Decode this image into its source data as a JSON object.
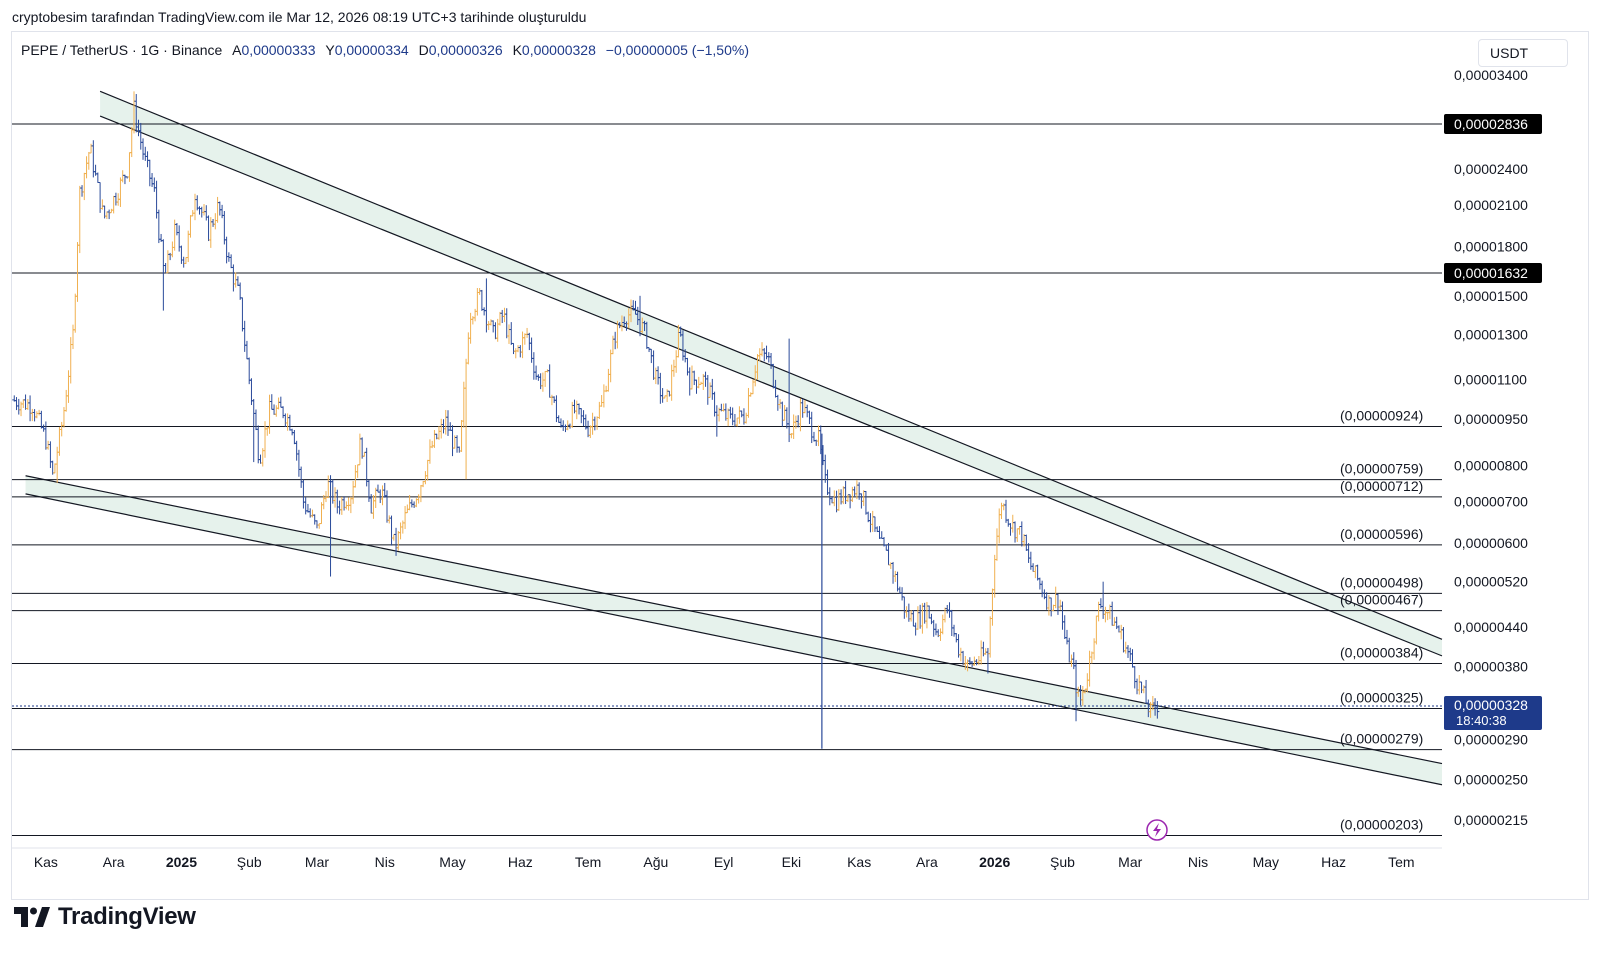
{
  "caption": "cryptobesim tarafından TradingView.com ile Mar 12, 2026 08:19 UTC+3 tarihinde oluşturuldu",
  "legend": {
    "symbol": "PEPE / TetherUS · 1G · Binance",
    "open_label": "A",
    "open": "0,00000333",
    "high_label": "Y",
    "high": "0,00000334",
    "low_label": "D",
    "low": "0,00000326",
    "close_label": "K",
    "close": "0,00000328",
    "change": "−0,00000005 (−1,50%)"
  },
  "currency_button": "USDT",
  "logo": {
    "text": "TradingView"
  },
  "colors": {
    "up": "#f0b050",
    "down": "#2a4a9a",
    "channel_fill": "#e6f2ec",
    "level_line": "#131722",
    "price_label_bg": "#1e3a8a"
  },
  "chart_data": {
    "type": "candlestick",
    "title": "PEPE / TetherUS · 1G · Binance",
    "y_scale": "log",
    "y_ticks": [
      "0,00003400",
      "0,00002400",
      "0,00002100",
      "0,00001800",
      "0,00001500",
      "0,00001300",
      "0,00001100",
      "0,00000950",
      "0,00000800",
      "0,00000700",
      "0,00000600",
      "0,00000520",
      "0,00000440",
      "0,00000380",
      "0,00000290",
      "0,00000250",
      "0,00000215"
    ],
    "y_tick_values": [
      3.4e-05,
      2.4e-05,
      2.1e-05,
      1.8e-05,
      1.5e-05,
      1.3e-05,
      1.1e-05,
      9.5e-06,
      8e-06,
      7e-06,
      6e-06,
      5.2e-06,
      4.4e-06,
      3.8e-06,
      2.9e-06,
      2.5e-06,
      2.15e-06
    ],
    "x_ticks": [
      {
        "label": "Kas",
        "t": 0.5,
        "bold": false
      },
      {
        "label": "Ara",
        "t": 1.5,
        "bold": false
      },
      {
        "label": "2025",
        "t": 2.5,
        "bold": true
      },
      {
        "label": "Şub",
        "t": 3.5,
        "bold": false
      },
      {
        "label": "Mar",
        "t": 4.5,
        "bold": false
      },
      {
        "label": "Nis",
        "t": 5.5,
        "bold": false
      },
      {
        "label": "May",
        "t": 6.5,
        "bold": false
      },
      {
        "label": "Haz",
        "t": 7.5,
        "bold": false
      },
      {
        "label": "Tem",
        "t": 8.5,
        "bold": false
      },
      {
        "label": "Ağu",
        "t": 9.5,
        "bold": false
      },
      {
        "label": "Eyl",
        "t": 10.5,
        "bold": false
      },
      {
        "label": "Eki",
        "t": 11.5,
        "bold": false
      },
      {
        "label": "Kas",
        "t": 12.5,
        "bold": false
      },
      {
        "label": "Ara",
        "t": 13.5,
        "bold": false
      },
      {
        "label": "2026",
        "t": 14.5,
        "bold": true
      },
      {
        "label": "Şub",
        "t": 15.5,
        "bold": false
      },
      {
        "label": "Mar",
        "t": 16.5,
        "bold": false
      },
      {
        "label": "Nis",
        "t": 17.5,
        "bold": false
      },
      {
        "label": "May",
        "t": 18.5,
        "bold": false
      },
      {
        "label": "Haz",
        "t": 19.5,
        "bold": false
      },
      {
        "label": "Tem",
        "t": 20.5,
        "bold": false
      }
    ],
    "x_range": [
      0,
      21.1
    ],
    "horizontal_levels": [
      {
        "value": 2.836e-05,
        "label": "0,00002836",
        "style": "axis_box"
      },
      {
        "value": 1.632e-05,
        "label": "0,00001632",
        "style": "axis_box"
      },
      {
        "value": 9.24e-06,
        "label": "(0,00000924)",
        "style": "paren"
      },
      {
        "value": 7.59e-06,
        "label": "(0,00000759)",
        "style": "paren"
      },
      {
        "value": 7.12e-06,
        "label": "(0,00000712)",
        "style": "paren"
      },
      {
        "value": 5.96e-06,
        "label": "(0,00000596)",
        "style": "paren"
      },
      {
        "value": 4.98e-06,
        "label": "(0,00000498)",
        "style": "paren"
      },
      {
        "value": 4.67e-06,
        "label": "(0,00000467)",
        "style": "paren"
      },
      {
        "value": 3.84e-06,
        "label": "(0,00000384)",
        "style": "paren"
      },
      {
        "value": 3.25e-06,
        "label": "(0,00000325)",
        "style": "paren"
      },
      {
        "value": 2.79e-06,
        "label": "(0,00000279)",
        "style": "paren"
      },
      {
        "value": 2.03e-06,
        "label": "(0,00000203)",
        "style": "paren"
      }
    ],
    "channels": [
      {
        "name": "descending-resistance",
        "t0": 1.3,
        "v0_top": 3.2e-05,
        "v0_bot": 2.92e-05,
        "t1": 21.1,
        "v1_top": 4.2e-06,
        "v1_bot": 3.95e-06
      },
      {
        "name": "descending-support",
        "t0": 0.2,
        "v0_top": 7.7e-06,
        "v0_bot": 7.2e-06,
        "t1": 21.1,
        "v1_top": 2.65e-06,
        "v1_bot": 2.45e-06
      }
    ],
    "current_price": {
      "value": 3.28e-06,
      "label": "0,00000328",
      "countdown": "18:40:38"
    },
    "price_path": [
      [
        0.0,
        1.02e-05
      ],
      [
        0.3,
        1e-05
      ],
      [
        0.5,
        8.8e-06
      ],
      [
        0.6,
        7.7e-06
      ],
      [
        0.75,
        9.5e-06
      ],
      [
        0.9,
        1.3e-05
      ],
      [
        1.0,
        2.2e-05
      ],
      [
        1.15,
        2.6e-05
      ],
      [
        1.35,
        2e-05
      ],
      [
        1.55,
        2.2e-05
      ],
      [
        1.7,
        2.4e-05
      ],
      [
        1.8,
        3e-05
      ],
      [
        1.95,
        2.5e-05
      ],
      [
        2.1,
        2.2e-05
      ],
      [
        2.25,
        1.6e-05
      ],
      [
        2.4,
        1.9e-05
      ],
      [
        2.55,
        1.7e-05
      ],
      [
        2.7,
        2.2e-05
      ],
      [
        2.9,
        1.9e-05
      ],
      [
        3.05,
        2.1e-05
      ],
      [
        3.2,
        1.7e-05
      ],
      [
        3.35,
        1.5e-05
      ],
      [
        3.5,
        1.1e-05
      ],
      [
        3.65,
        8.2e-06
      ],
      [
        3.8,
        9.8e-06
      ],
      [
        4.0,
        9.8e-06
      ],
      [
        4.15,
        9.2e-06
      ],
      [
        4.3,
        7e-06
      ],
      [
        4.5,
        6.3e-06
      ],
      [
        4.65,
        7.5e-06
      ],
      [
        4.8,
        6.9e-06
      ],
      [
        5.0,
        7.2e-06
      ],
      [
        5.15,
        8.8e-06
      ],
      [
        5.3,
        6.9e-06
      ],
      [
        5.45,
        7.3e-06
      ],
      [
        5.65,
        5.9e-06
      ],
      [
        5.8,
        6.6e-06
      ],
      [
        6.0,
        7.3e-06
      ],
      [
        6.2,
        8.6e-06
      ],
      [
        6.4,
        9.4e-06
      ],
      [
        6.6,
        8.2e-06
      ],
      [
        6.75,
        1.4e-05
      ],
      [
        6.9,
        1.5e-05
      ],
      [
        7.1,
        1.3e-05
      ],
      [
        7.25,
        1.4e-05
      ],
      [
        7.4,
        1.2e-05
      ],
      [
        7.6,
        1.3e-05
      ],
      [
        7.75,
        1.1e-05
      ],
      [
        7.9,
        1.1e-05
      ],
      [
        8.1,
        9.1e-06
      ],
      [
        8.3,
        9.8e-06
      ],
      [
        8.5,
        9.2e-06
      ],
      [
        8.7,
        1e-05
      ],
      [
        8.9,
        1.3e-05
      ],
      [
        9.05,
        1.4e-05
      ],
      [
        9.2,
        1.4e-05
      ],
      [
        9.35,
        1.3e-05
      ],
      [
        9.5,
        1.1e-05
      ],
      [
        9.65,
        1e-05
      ],
      [
        9.85,
        1.3e-05
      ],
      [
        10.0,
        1.1e-05
      ],
      [
        10.2,
        1.1e-05
      ],
      [
        10.4,
        9.8e-06
      ],
      [
        10.6,
        9.5e-06
      ],
      [
        10.8,
        9.6e-06
      ],
      [
        11.0,
        1.2e-05
      ],
      [
        11.15,
        1.2e-05
      ],
      [
        11.35,
        9.8e-06
      ],
      [
        11.5,
        9e-06
      ],
      [
        11.65,
        1e-05
      ],
      [
        11.8,
        9.2e-06
      ],
      [
        11.9,
        8.8e-06
      ],
      [
        12.0,
        7.5e-06
      ],
      [
        12.15,
        7e-06
      ],
      [
        12.3,
        7.2e-06
      ],
      [
        12.5,
        7.4e-06
      ],
      [
        12.65,
        6.6e-06
      ],
      [
        12.8,
        6e-06
      ],
      [
        12.95,
        5.6e-06
      ],
      [
        13.05,
        5.2e-06
      ],
      [
        13.2,
        4.6e-06
      ],
      [
        13.35,
        4.5e-06
      ],
      [
        13.5,
        4.7e-06
      ],
      [
        13.65,
        4.3e-06
      ],
      [
        13.8,
        4.7e-06
      ],
      [
        13.95,
        4.1e-06
      ],
      [
        14.1,
        3.8e-06
      ],
      [
        14.25,
        3.9e-06
      ],
      [
        14.4,
        4e-06
      ],
      [
        14.5,
        5.8e-06
      ],
      [
        14.6,
        7e-06
      ],
      [
        14.75,
        6.4e-06
      ],
      [
        14.9,
        6.2e-06
      ],
      [
        15.0,
        5.6e-06
      ],
      [
        15.15,
        5.2e-06
      ],
      [
        15.3,
        4.8e-06
      ],
      [
        15.45,
        4.9e-06
      ],
      [
        15.55,
        4.1e-06
      ],
      [
        15.65,
        3.8e-06
      ],
      [
        15.75,
        3.3e-06
      ],
      [
        15.85,
        3.6e-06
      ],
      [
        15.95,
        4.2e-06
      ],
      [
        16.05,
        4.8e-06
      ],
      [
        16.2,
        4.6e-06
      ],
      [
        16.35,
        4.3e-06
      ],
      [
        16.5,
        3.9e-06
      ],
      [
        16.6,
        3.6e-06
      ],
      [
        16.7,
        3.4e-06
      ],
      [
        16.8,
        3.2e-06
      ],
      [
        16.9,
        3.3e-06
      ]
    ],
    "spikes": [
      {
        "t": 0.65,
        "low": 7.5e-06
      },
      {
        "t": 1.8,
        "high": 3.2e-05
      },
      {
        "t": 2.25,
        "low": 1.42e-05
      },
      {
        "t": 3.55,
        "low": 8.1e-06
      },
      {
        "t": 4.7,
        "low": 5.3e-06
      },
      {
        "t": 6.7,
        "low": 7.6e-06
      },
      {
        "t": 7.0,
        "high": 1.6e-05
      },
      {
        "t": 9.25,
        "high": 1.5e-05
      },
      {
        "t": 10.4,
        "low": 8.9e-06
      },
      {
        "t": 11.45,
        "high": 1.28e-05
      },
      {
        "t": 11.85,
        "low": 8.6e-06
      },
      {
        "t": 14.4,
        "low": 3.7e-06
      },
      {
        "t": 15.7,
        "low": 3.1e-06
      },
      {
        "t": 16.1,
        "high": 5.2e-06
      }
    ],
    "wick_event": {
      "t": 11.95,
      "high": 9e-06,
      "low": 2.8e-06
    }
  }
}
